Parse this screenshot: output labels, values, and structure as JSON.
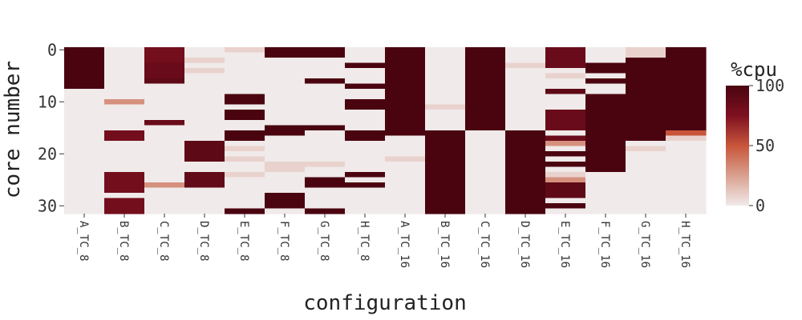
{
  "chart_data": {
    "type": "heatmap",
    "title": "",
    "xlabel": "configuration",
    "ylabel": "core number",
    "categories": [
      "A_TC_8",
      "B_TC_8",
      "C_TC_8",
      "D_TC_8",
      "E_TC_8",
      "F_TC_8",
      "G_TC_8",
      "H_TC_8",
      "A_TC_16",
      "B_TC_16",
      "C_TC_16",
      "D_TC_16",
      "E_TC_16",
      "F_TC_16",
      "G_TC_16",
      "H_TC_16"
    ],
    "y_ticks": [
      0,
      10,
      20,
      30
    ],
    "ylim": [
      0,
      31
    ],
    "colorbar": {
      "label": "%cpu",
      "ticks": [
        0,
        50,
        100
      ],
      "range": [
        0,
        100
      ],
      "colors": [
        "#f0eaea",
        "#d9a08f",
        "#c8553a",
        "#7d1020",
        "#4a0410"
      ]
    },
    "rows": 32,
    "values": [
      [
        100,
        100,
        100,
        100,
        100,
        100,
        100,
        100,
        0,
        0,
        0,
        0,
        0,
        0,
        0,
        0,
        0,
        0,
        0,
        0,
        0,
        0,
        0,
        0,
        0,
        0,
        0,
        0,
        0,
        0,
        0,
        0
      ],
      [
        0,
        0,
        0,
        0,
        0,
        0,
        0,
        0,
        0,
        0,
        30,
        0,
        0,
        0,
        0,
        0,
        80,
        80,
        0,
        0,
        0,
        0,
        0,
        0,
        80,
        80,
        80,
        80,
        0,
        80,
        80,
        80
      ],
      [
        80,
        80,
        80,
        85,
        85,
        85,
        90,
        0,
        0,
        0,
        0,
        0,
        0,
        0,
        85,
        0,
        0,
        0,
        0,
        0,
        0,
        0,
        0,
        0,
        0,
        0,
        30,
        0,
        0,
        0,
        0,
        0
      ],
      [
        0,
        0,
        8,
        0,
        8,
        0,
        0,
        0,
        0,
        0,
        0,
        0,
        0,
        0,
        0,
        0,
        0,
        0,
        90,
        90,
        90,
        90,
        0,
        0,
        88,
        88,
        88,
        0,
        0,
        0,
        0,
        0
      ],
      [
        8,
        0,
        0,
        0,
        0,
        0,
        0,
        0,
        0,
        100,
        100,
        0,
        100,
        100,
        0,
        0,
        100,
        100,
        0,
        8,
        0,
        8,
        0,
        0,
        8,
        0,
        0,
        0,
        0,
        0,
        0,
        100
      ],
      [
        100,
        100,
        0,
        0,
        0,
        0,
        0,
        0,
        0,
        0,
        0,
        0,
        0,
        0,
        0,
        100,
        100,
        0,
        0,
        0,
        0,
        0,
        8,
        8,
        0,
        0,
        0,
        0,
        100,
        100,
        100,
        0
      ],
      [
        100,
        100,
        0,
        0,
        0,
        0,
        100,
        0,
        0,
        0,
        0,
        0,
        0,
        0,
        0,
        100,
        0,
        0,
        0,
        0,
        0,
        0,
        8,
        0,
        0,
        100,
        100,
        0,
        0,
        0,
        0,
        100
      ],
      [
        0,
        0,
        0,
        100,
        0,
        0,
        0,
        100,
        0,
        0,
        100,
        100,
        0,
        0,
        0,
        0,
        100,
        100,
        0,
        0,
        0,
        0,
        0,
        0,
        100,
        0,
        100,
        0,
        0,
        0,
        0,
        0
      ],
      [
        100,
        100,
        100,
        100,
        100,
        100,
        100,
        100,
        100,
        100,
        100,
        100,
        100,
        100,
        100,
        100,
        100,
        0,
        0,
        0,
        0,
        8,
        0,
        0,
        0,
        0,
        0,
        0,
        0,
        0,
        0,
        0
      ],
      [
        0,
        0,
        0,
        0,
        0,
        0,
        0,
        0,
        0,
        0,
        0,
        8,
        0,
        0,
        0,
        0,
        100,
        100,
        100,
        100,
        100,
        100,
        100,
        100,
        100,
        100,
        100,
        100,
        100,
        100,
        100,
        100
      ],
      [
        100,
        100,
        100,
        100,
        100,
        100,
        100,
        100,
        100,
        100,
        100,
        100,
        100,
        100,
        100,
        100,
        0,
        0,
        0,
        0,
        0,
        0,
        0,
        0,
        0,
        0,
        0,
        0,
        0,
        0,
        0,
        0
      ],
      [
        0,
        0,
        0,
        8,
        0,
        0,
        0,
        0,
        0,
        0,
        0,
        0,
        0,
        0,
        0,
        0,
        100,
        100,
        100,
        100,
        100,
        100,
        100,
        100,
        100,
        100,
        100,
        100,
        100,
        100,
        100,
        100
      ],
      [
        85,
        85,
        85,
        85,
        0,
        8,
        0,
        0,
        90,
        0,
        0,
        0,
        85,
        85,
        85,
        85,
        0,
        85,
        30,
        0,
        100,
        0,
        100,
        0,
        8,
        30,
        90,
        90,
        90,
        0,
        100,
        0
      ],
      [
        0,
        0,
        0,
        100,
        100,
        0,
        100,
        0,
        0,
        100,
        100,
        100,
        100,
        100,
        100,
        100,
        100,
        100,
        100,
        100,
        100,
        100,
        100,
        100,
        0,
        0,
        0,
        0,
        0,
        0,
        0,
        0
      ],
      [
        8,
        8,
        100,
        100,
        100,
        100,
        100,
        100,
        100,
        100,
        100,
        100,
        100,
        100,
        100,
        100,
        100,
        100,
        0,
        8,
        0,
        0,
        0,
        0,
        0,
        0,
        0,
        0,
        0,
        0,
        0,
        0
      ],
      [
        100,
        100,
        100,
        100,
        100,
        100,
        100,
        100,
        100,
        100,
        100,
        100,
        100,
        100,
        100,
        100,
        50,
        8,
        0,
        0,
        0,
        0,
        0,
        0,
        0,
        0,
        0,
        0,
        0,
        0,
        0,
        0
      ]
    ]
  }
}
